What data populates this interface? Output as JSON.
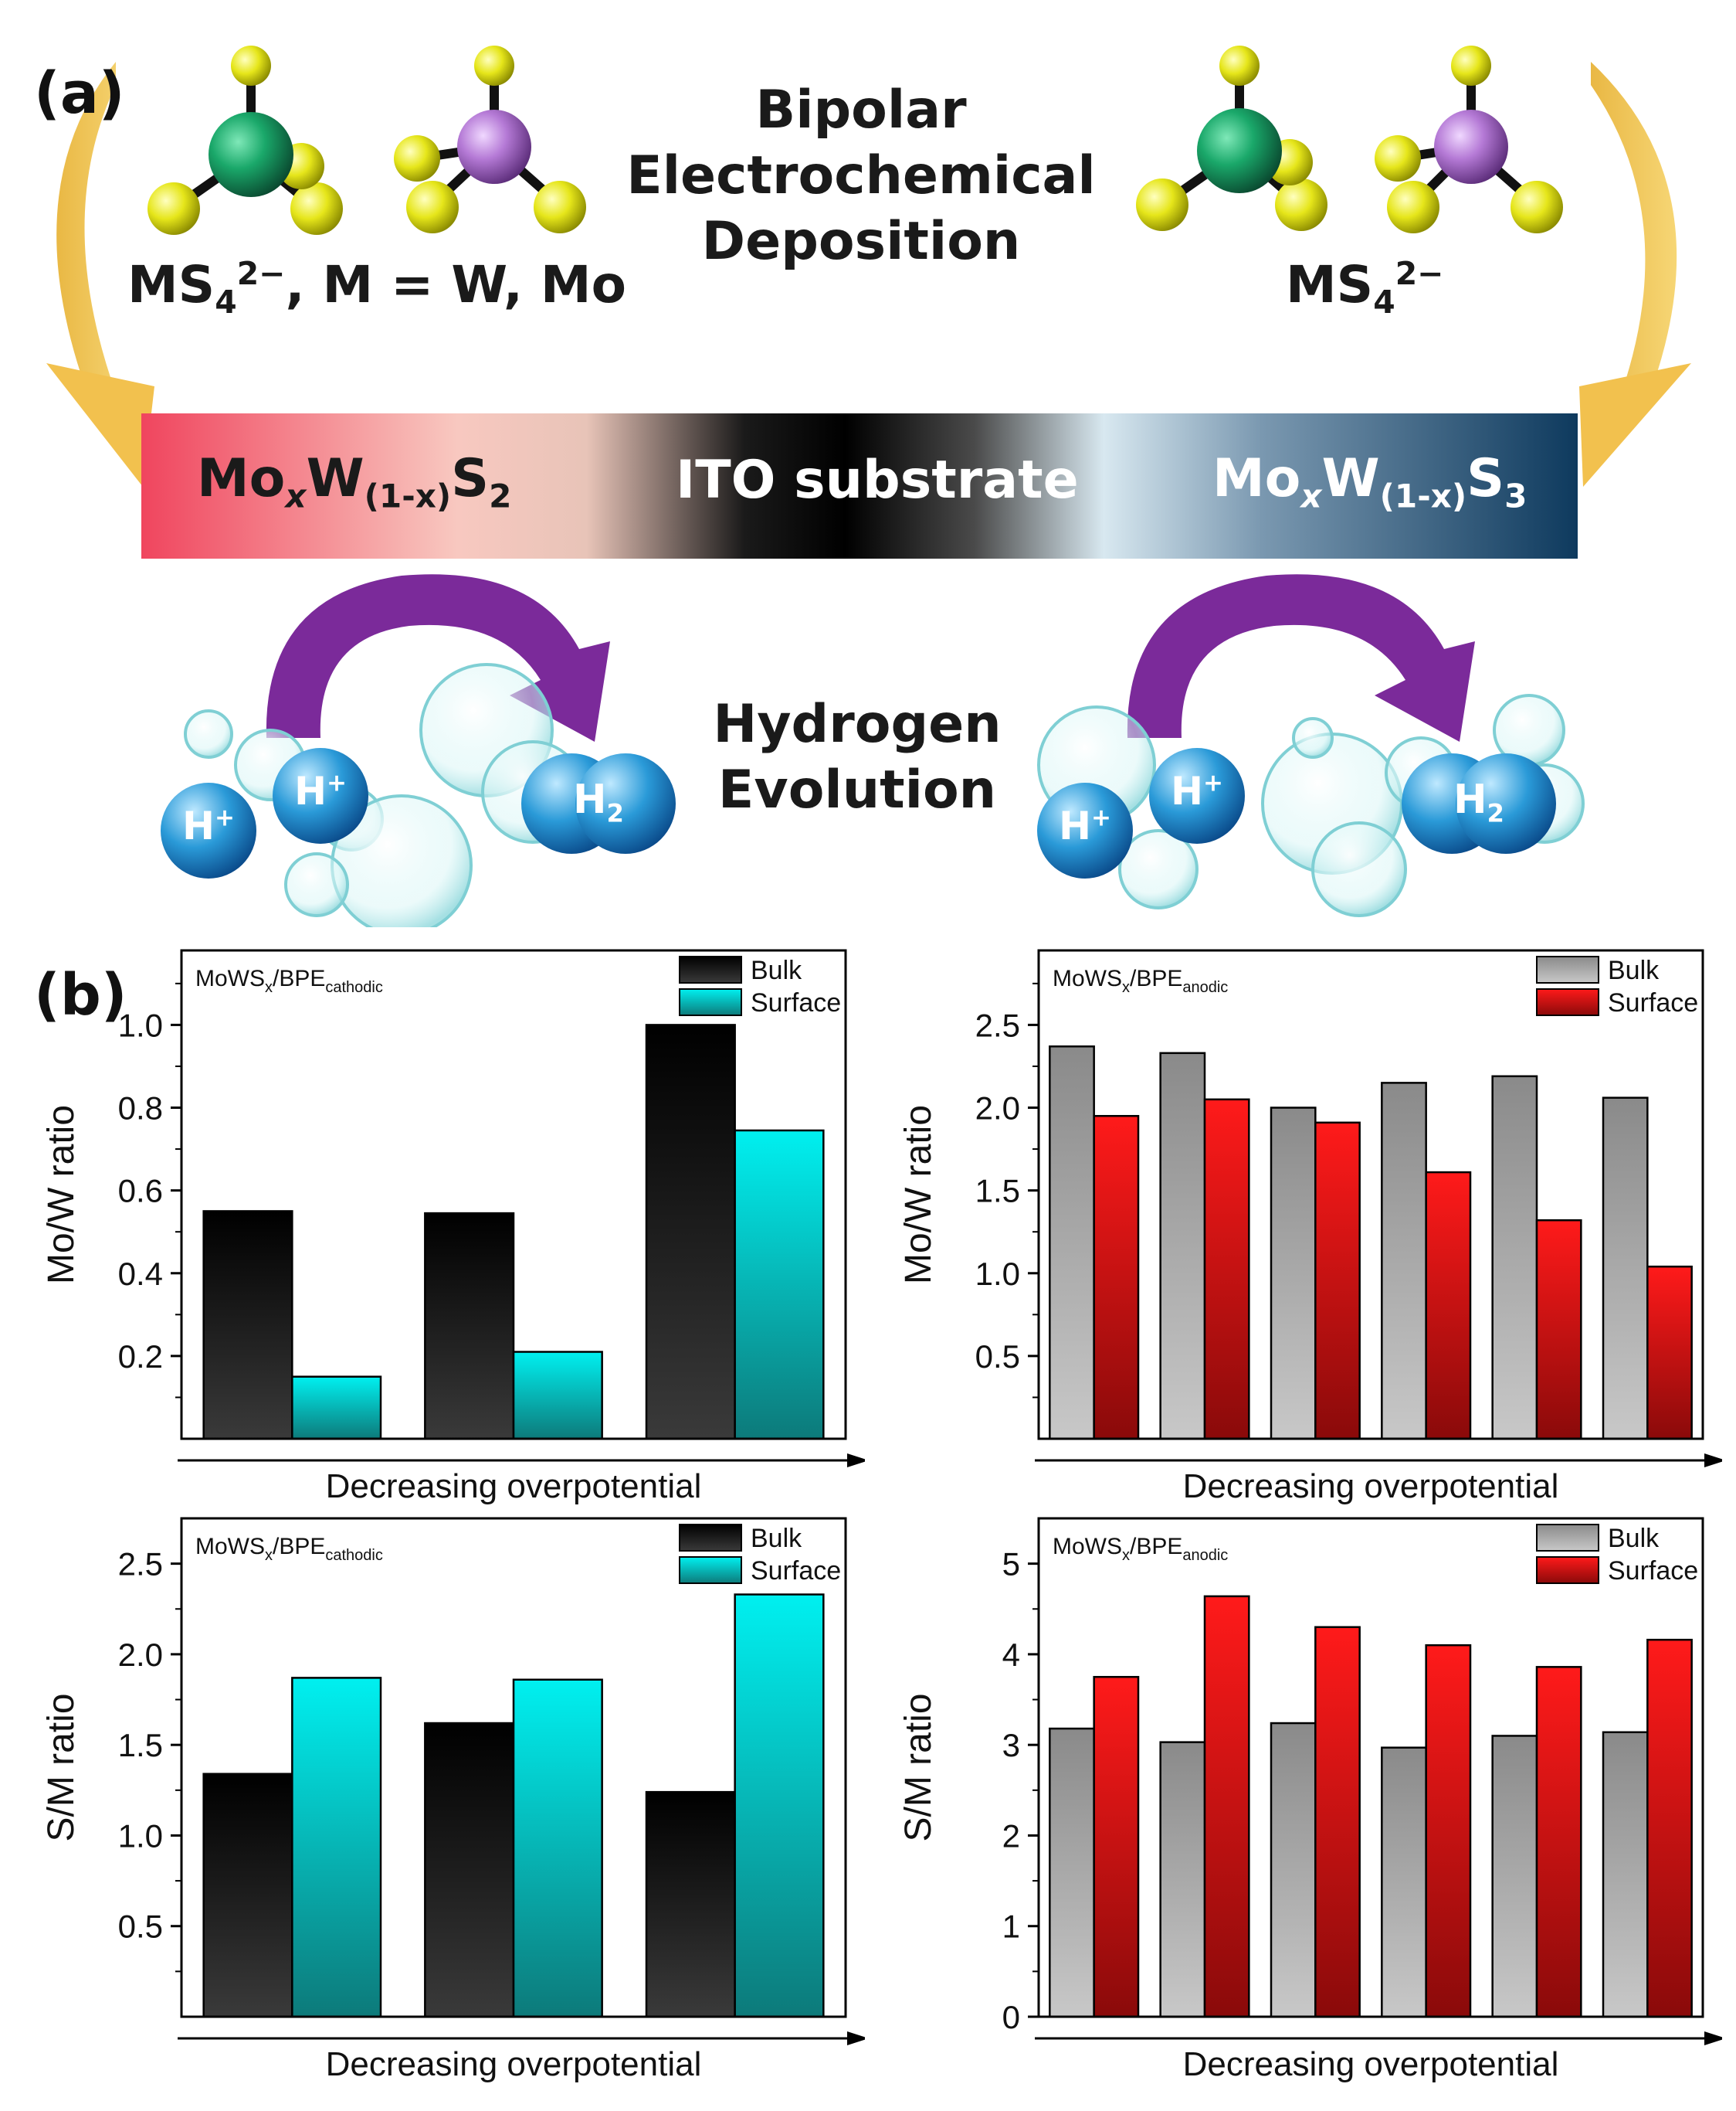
{
  "panel_a": {
    "label": "(a)",
    "title_lines": [
      "Bipolar",
      "Electrochemical",
      "Deposition"
    ],
    "left_ion": {
      "base": "MS",
      "sub": "4",
      "sup": "2−",
      "tail": ", M = W, Mo"
    },
    "right_ion": {
      "base": "MS",
      "sub": "4",
      "sup": "2−"
    },
    "substrate": {
      "left": {
        "a": "Mo",
        "x": "x",
        "b": "W",
        "sub": "(1-x)",
        "c": "S",
        "n": "2"
      },
      "center": "ITO substrate",
      "right": {
        "a": "Mo",
        "x": "x",
        "b": "W",
        "sub": "(1-x)",
        "c": "S",
        "n": "3"
      }
    },
    "hydrogen_lines": [
      "Hydrogen",
      "Evolution"
    ],
    "proton": {
      "base": "H",
      "sup": "+"
    },
    "h2": {
      "base": "H",
      "sub": "2"
    },
    "colors": {
      "arrow_gold": "#f2c14e",
      "arrow_purple": "#7b2a9a",
      "bar_left": "#f0455e",
      "bar_right": "#0e3a5e",
      "w_atom": "#1aa86a",
      "mo_atom": "#b57ad6",
      "s_atom": "#e6e61a"
    }
  },
  "panel_b": {
    "label": "(b)"
  },
  "chart_data": [
    {
      "type": "bar",
      "title": "MoWS",
      "title_sub": "x",
      "title_tail": "/BPE",
      "title_subscript": "cathodic",
      "xlabel": "Decreasing overpotential",
      "ylabel": "Mo/W ratio",
      "ylim": [
        0,
        1.18
      ],
      "yticks": [
        0.2,
        0.4,
        0.6,
        0.8,
        1.0
      ],
      "ytick_labels": [
        "0.2",
        "0.4",
        "0.6",
        "0.8",
        "1.0"
      ],
      "legend_position": "top-right",
      "series": [
        {
          "name": "Bulk",
          "values": [
            0.55,
            0.545,
            1.0
          ],
          "color_top": "#000000",
          "color_bottom": "#3a3a3a"
        },
        {
          "name": "Surface",
          "values": [
            0.15,
            0.21,
            0.745
          ],
          "color_top": "#00f0f0",
          "color_bottom": "#0d7a7a"
        }
      ]
    },
    {
      "type": "bar",
      "title": "MoWS",
      "title_sub": "x",
      "title_tail": "/BPE",
      "title_subscript": "anodic",
      "xlabel": "Decreasing overpotential",
      "ylabel": "Mo/W ratio",
      "ylim": [
        0,
        2.95
      ],
      "yticks": [
        0.5,
        1.0,
        1.5,
        2.0,
        2.5
      ],
      "ytick_labels": [
        "0.5",
        "1.0",
        "1.5",
        "2.0",
        "2.5"
      ],
      "legend_position": "top-right",
      "series": [
        {
          "name": "Bulk",
          "values": [
            2.37,
            2.33,
            2.0,
            2.15,
            2.19,
            2.06
          ],
          "color_top": "#8a8a8a",
          "color_bottom": "#c8c8c8"
        },
        {
          "name": "Surface",
          "values": [
            1.95,
            2.05,
            1.91,
            1.61,
            1.32,
            1.04
          ],
          "color_top": "#ff1a1a",
          "color_bottom": "#8a0a0a"
        }
      ]
    },
    {
      "type": "bar",
      "title": "MoWS",
      "title_sub": "x",
      "title_tail": "/BPE",
      "title_subscript": "cathodic",
      "xlabel": "Decreasing overpotential",
      "ylabel": "S/M ratio",
      "ylim": [
        0,
        2.75
      ],
      "yticks": [
        0.5,
        1.0,
        1.5,
        2.0,
        2.5
      ],
      "ytick_labels": [
        "0.5",
        "1.0",
        "1.5",
        "2.0",
        "2.5"
      ],
      "legend_position": "top-right",
      "series": [
        {
          "name": "Bulk",
          "values": [
            1.34,
            1.62,
            1.24
          ],
          "color_top": "#000000",
          "color_bottom": "#3a3a3a"
        },
        {
          "name": "Surface",
          "values": [
            1.87,
            1.86,
            2.33
          ],
          "color_top": "#00f0f0",
          "color_bottom": "#0d7a7a"
        }
      ]
    },
    {
      "type": "bar",
      "title": "MoWS",
      "title_sub": "x",
      "title_tail": "/BPE",
      "title_subscript": "anodic",
      "xlabel": "Decreasing overpotential",
      "ylabel": "S/M ratio",
      "ylim": [
        0,
        5.5
      ],
      "yticks": [
        0,
        1,
        2,
        3,
        4,
        5
      ],
      "ytick_labels": [
        "0",
        "1",
        "2",
        "3",
        "4",
        "5"
      ],
      "legend_position": "top-right",
      "series": [
        {
          "name": "Bulk",
          "values": [
            3.18,
            3.03,
            3.24,
            2.97,
            3.1,
            3.14
          ],
          "color_top": "#8a8a8a",
          "color_bottom": "#c8c8c8"
        },
        {
          "name": "Surface",
          "values": [
            3.75,
            4.64,
            4.3,
            4.1,
            3.86,
            4.16
          ],
          "color_top": "#ff1a1a",
          "color_bottom": "#8a0a0a"
        }
      ]
    }
  ]
}
